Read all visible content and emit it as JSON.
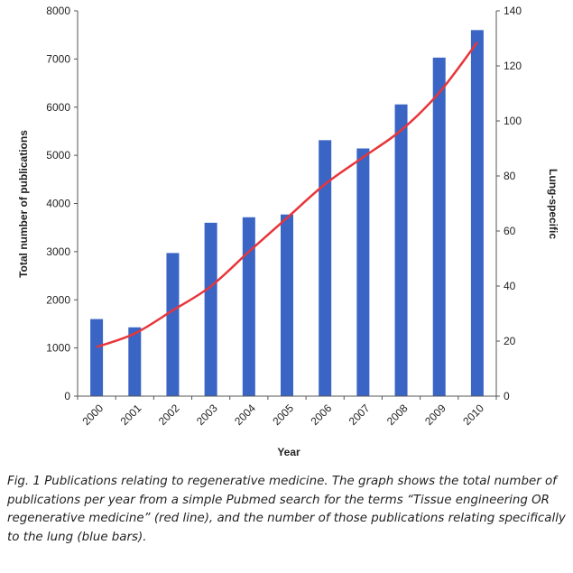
{
  "chart_data": {
    "type": "bar",
    "categories": [
      "2000",
      "2001",
      "2002",
      "2003",
      "2004",
      "2005",
      "2006",
      "2007",
      "2008",
      "2009",
      "2010"
    ],
    "series": [
      {
        "axis": "right",
        "type": "bar",
        "color": "#3a65c4",
        "values": [
          28,
          25,
          52,
          63,
          65,
          66,
          93,
          90,
          106,
          123,
          133
        ]
      },
      {
        "axis": "left",
        "type": "line",
        "color": "#e8353a",
        "values": [
          1020,
          1300,
          1780,
          2280,
          3000,
          3700,
          4400,
          4960,
          5520,
          6300,
          7350
        ]
      }
    ],
    "xlabel": "Year",
    "ylabel_left": "Total number of publications",
    "ylabel_right": "Lung-specific",
    "ylim_left": [
      0,
      8000
    ],
    "ylim_right": [
      0,
      140
    ],
    "yticks_left": [
      "0",
      "1000",
      "2000",
      "3000",
      "4000",
      "5000",
      "6000",
      "7000",
      "8000"
    ],
    "yticks_right": [
      "0",
      "20",
      "40",
      "60",
      "80",
      "100",
      "120",
      "140"
    ],
    "grid": false
  },
  "caption": "Fig. 1 Publications relating to regenerative medicine. The graph shows the total number of publications per year from a simple Pubmed search for the terms “Tissue engineering OR regenerative medicine” (red line), and the number of those publications relating specifically to the lung (blue bars)."
}
